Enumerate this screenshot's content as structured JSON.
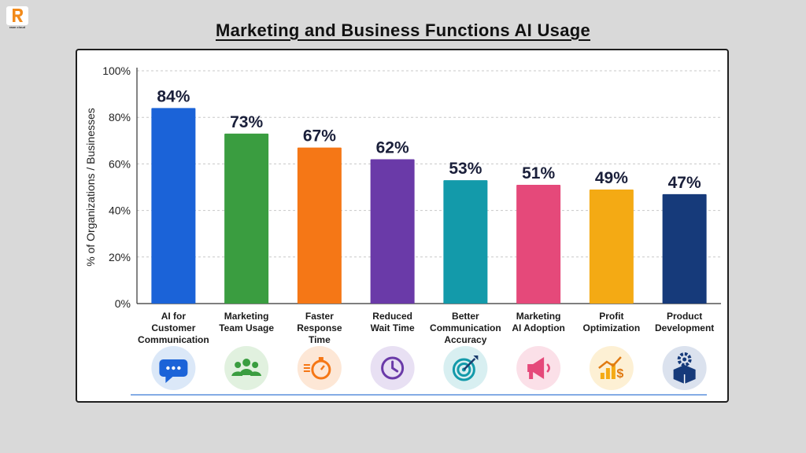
{
  "header": {
    "title": "Marketing and Business Functions AI Usage"
  },
  "brand": {
    "logo_text": "raan cloud",
    "accent": "#f28a1a"
  },
  "chart_data": {
    "type": "bar",
    "ylabel": "% of Organizations / Businesses",
    "xlabel": "",
    "ylim": [
      0,
      100
    ],
    "yticks": [
      0,
      20,
      40,
      60,
      80,
      100
    ],
    "tick_suffix": "%",
    "grid": true,
    "categories": [
      [
        "AI for",
        "Customer",
        "Communication"
      ],
      [
        "Marketing",
        "Team Usage"
      ],
      [
        "Faster",
        "Response",
        "Time"
      ],
      [
        "Reduced",
        "Wait Time"
      ],
      [
        "Better",
        "Communication",
        "Accuracy"
      ],
      [
        "Marketing",
        "AI Adoption"
      ],
      [
        "Profit",
        "Optimization"
      ],
      [
        "Product",
        "Development"
      ]
    ],
    "values": [
      84,
      73,
      67,
      62,
      53,
      51,
      49,
      47
    ],
    "value_labels": [
      "84%",
      "73%",
      "67%",
      "62%",
      "53%",
      "51%",
      "49%",
      "47%"
    ],
    "colors": [
      "#1b63d8",
      "#3a9d40",
      "#f57716",
      "#6a3aa8",
      "#139aaa",
      "#e5497a",
      "#f4aa14",
      "#163a7a"
    ],
    "icons": [
      {
        "name": "chat-bubble-icon",
        "bg": "#dbe8f8"
      },
      {
        "name": "team-icon",
        "bg": "#e1f1df"
      },
      {
        "name": "stopwatch-icon",
        "bg": "#fde7d6"
      },
      {
        "name": "clock-icon",
        "bg": "#e8e0f3"
      },
      {
        "name": "target-icon",
        "bg": "#d8eff1"
      },
      {
        "name": "megaphone-icon",
        "bg": "#fbe0e8"
      },
      {
        "name": "profit-chart-icon",
        "bg": "#fdf0d4"
      },
      {
        "name": "product-box-icon",
        "bg": "#dbe2ee"
      }
    ]
  }
}
